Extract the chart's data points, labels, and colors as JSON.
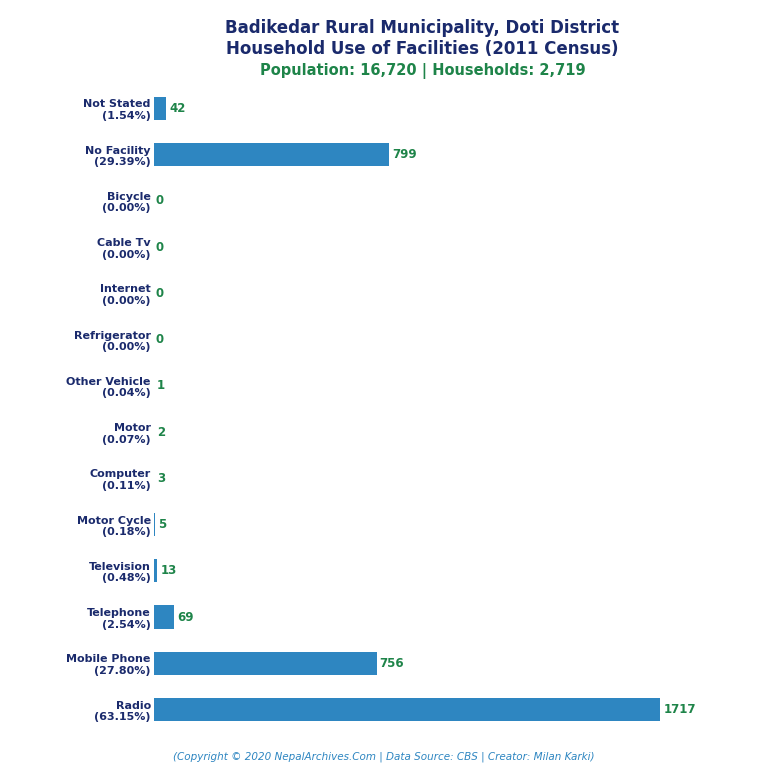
{
  "title_line1": "Badikedar Rural Municipality, Doti District",
  "title_line2": "Household Use of Facilities (2011 Census)",
  "subtitle": "Population: 16,720 | Households: 2,719",
  "footer": "(Copyright © 2020 NepalArchives.Com | Data Source: CBS | Creator: Milan Karki)",
  "categories_top_to_bottom": [
    "Not Stated\n(1.54%)",
    "No Facility\n(29.39%)",
    "Bicycle\n(0.00%)",
    "Cable Tv\n(0.00%)",
    "Internet\n(0.00%)",
    "Refrigerator\n(0.00%)",
    "Other Vehicle\n(0.04%)",
    "Motor\n(0.07%)",
    "Computer\n(0.11%)",
    "Motor Cycle\n(0.18%)",
    "Television\n(0.48%)",
    "Telephone\n(2.54%)",
    "Mobile Phone\n(27.80%)",
    "Radio\n(63.15%)"
  ],
  "values_top_to_bottom": [
    42,
    799,
    0,
    0,
    0,
    0,
    1,
    2,
    3,
    5,
    13,
    69,
    756,
    1717
  ],
  "bar_color": "#2e86c1",
  "value_color": "#1e8449",
  "title_color": "#1a2a6c",
  "subtitle_color": "#1e8449",
  "footer_color": "#2e86c1",
  "background_color": "#ffffff",
  "xlim": [
    0,
    1900
  ]
}
